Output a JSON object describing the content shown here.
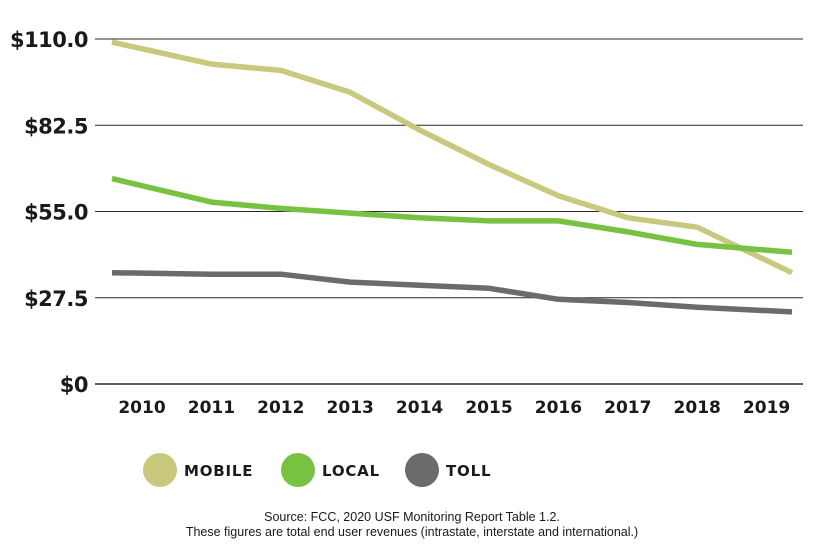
{
  "chart_data": {
    "type": "line",
    "x": [
      "2010",
      "2011",
      "2012",
      "2013",
      "2014",
      "2015",
      "2016",
      "2017",
      "2018",
      "2019"
    ],
    "yticks": [
      "$0",
      "$27.5",
      "$55.0",
      "$82.5",
      "$110.0"
    ],
    "ytick_values": [
      0,
      27.5,
      55.0,
      82.5,
      110.0
    ],
    "ylim": [
      0,
      110
    ],
    "grid": "horizontal",
    "legend_position": "bottom",
    "series": [
      {
        "name": "MOBILE",
        "color": "#c8c97c",
        "x_start": 2009.97,
        "values": [
          109.0,
          102.0,
          100.0,
          93.0,
          81.0,
          70.0,
          60.0,
          53.0,
          50.0,
          35.5
        ]
      },
      {
        "name": "LOCAL",
        "color": "#77c341",
        "x_start": 2009.97,
        "values": [
          65.5,
          58.0,
          56.0,
          54.5,
          53.0,
          52.0,
          52.0,
          48.5,
          44.5,
          42.0
        ]
      },
      {
        "name": "TOLL",
        "color": "#6b6b6d",
        "x_start": 2009.97,
        "values": [
          35.5,
          35.0,
          35.0,
          32.5,
          31.5,
          30.5,
          27.0,
          26.0,
          24.5,
          23.0
        ]
      }
    ]
  },
  "source_lines": [
    "Source: FCC, 2020 USF Monitoring Report Table 1.2.",
    "These figures are total end user revenues (intrastate, interstate and international.)"
  ]
}
